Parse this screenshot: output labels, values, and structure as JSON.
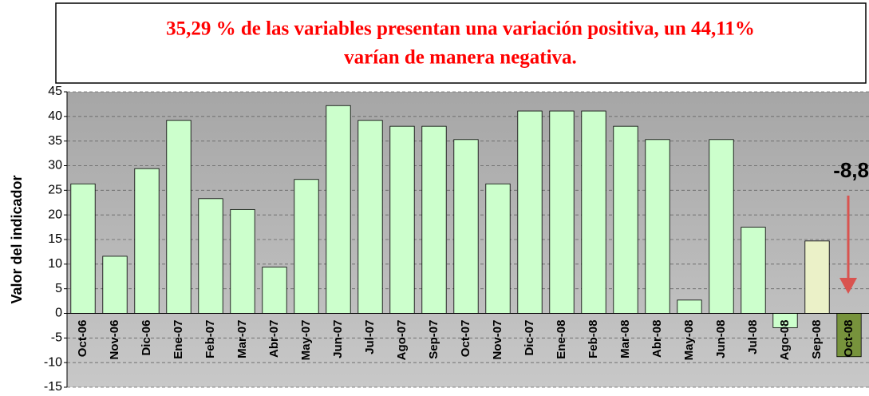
{
  "chart_data": {
    "type": "bar",
    "title_lines": [
      "35,29 % de las variables presentan una variación positiva, un 44,11%",
      "varían de manera negativa."
    ],
    "y_label": "Valor del indicador",
    "annotation": "-8,8",
    "categories": [
      "Oct-06",
      "Nov-06",
      "Dic-06",
      "Ene-07",
      "Feb-07",
      "Mar-07",
      "Abr-07",
      "May-07",
      "Jun-07",
      "Jul-07",
      "Ago-07",
      "Sep-07",
      "Oct-07",
      "Nov-07",
      "Dic-07",
      "Ene-08",
      "Feb-08",
      "Mar-08",
      "Abr-08",
      "May-08",
      "Jun-08",
      "Jul-08",
      "Ago-08",
      "Sep-08",
      "Oct-08"
    ],
    "values": [
      26.3,
      11.6,
      29.4,
      39.2,
      23.3,
      21.1,
      9.4,
      27.2,
      42.2,
      39.2,
      38,
      38,
      35.3,
      26.3,
      41.1,
      41.1,
      41.1,
      38,
      35.3,
      2.7,
      35.3,
      17.5,
      -2.9,
      14.7,
      -8.8
    ],
    "colors": [
      "#ccffcc",
      "#ccffcc",
      "#ccffcc",
      "#ccffcc",
      "#ccffcc",
      "#ccffcc",
      "#ccffcc",
      "#ccffcc",
      "#ccffcc",
      "#ccffcc",
      "#ccffcc",
      "#ccffcc",
      "#ccffcc",
      "#ccffcc",
      "#ccffcc",
      "#ccffcc",
      "#ccffcc",
      "#ccffcc",
      "#ccffcc",
      "#ccffcc",
      "#ccffcc",
      "#ccffcc",
      "#ccffcc",
      "#ebf1c8",
      "#77933c"
    ],
    "ylim": [
      -15,
      45
    ],
    "yticks": [
      -15,
      -10,
      -5,
      0,
      5,
      10,
      15,
      20,
      25,
      30,
      35,
      40,
      45
    ],
    "grid": true
  }
}
